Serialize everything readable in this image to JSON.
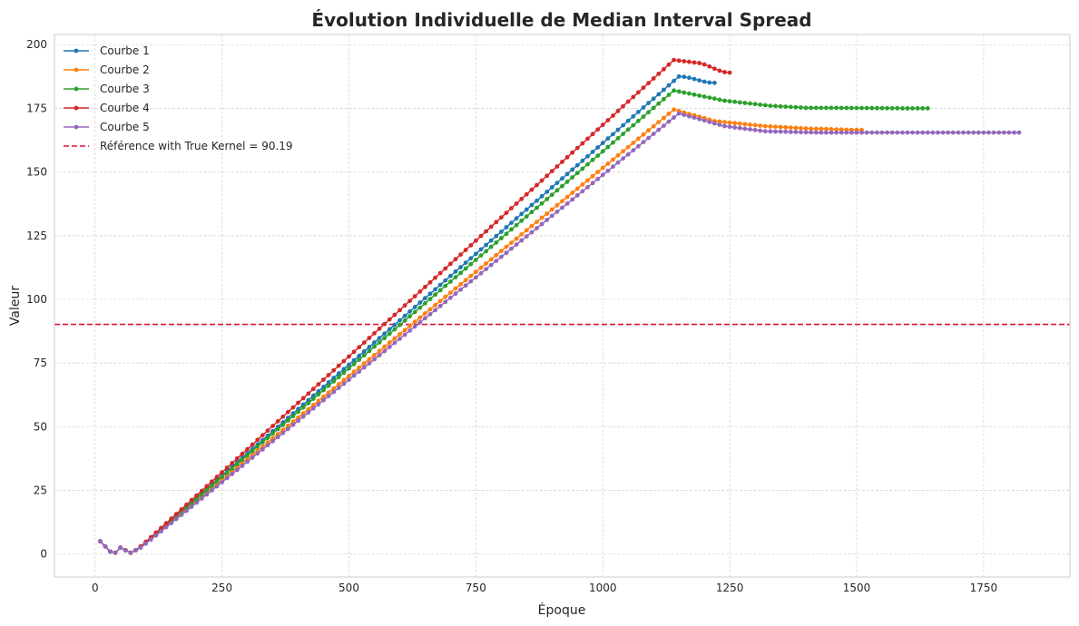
{
  "chart_data": {
    "type": "line",
    "title": "Évolution Individuelle de Median Interval Spread",
    "xlabel": "Époque",
    "ylabel": "Valeur",
    "xlim": [
      -80,
      1920
    ],
    "ylim": [
      -9,
      204
    ],
    "xticks": [
      0,
      250,
      500,
      750,
      1000,
      1250,
      1500,
      1750
    ],
    "yticks": [
      0,
      25,
      50,
      75,
      100,
      125,
      150,
      175,
      200
    ],
    "grid": true,
    "legend_position": "top-left",
    "reference_line": {
      "label": "Référence with True Kernel = 90.19",
      "value": 90.19,
      "color": "#dc143c"
    },
    "x_step": 10,
    "series": [
      {
        "name": "Courbe 1",
        "color": "#1f77b4",
        "x_start": 10,
        "x_end": 1220,
        "segments": [
          [
            10,
            5
          ],
          [
            20,
            3
          ],
          [
            30,
            1
          ],
          [
            40,
            0.5
          ],
          [
            50,
            2.5
          ],
          [
            60,
            1.5
          ],
          [
            70,
            0.5
          ],
          [
            80,
            1.5
          ],
          [
            90,
            3
          ],
          [
            1150,
            187.5
          ],
          [
            1220,
            185
          ]
        ]
      },
      {
        "name": "Courbe 2",
        "color": "#ff7f0e",
        "x_start": 10,
        "x_end": 1510,
        "segments": [
          [
            10,
            5
          ],
          [
            20,
            3
          ],
          [
            30,
            1
          ],
          [
            40,
            0.5
          ],
          [
            50,
            2.5
          ],
          [
            60,
            1.5
          ],
          [
            70,
            0.5
          ],
          [
            80,
            1.5
          ],
          [
            90,
            3
          ],
          [
            1140,
            174.5
          ],
          [
            1220,
            170
          ],
          [
            1320,
            168
          ],
          [
            1410,
            167
          ],
          [
            1510,
            166.5
          ]
        ]
      },
      {
        "name": "Courbe 3",
        "color": "#2ca02c",
        "x_start": 10,
        "x_end": 1640,
        "segments": [
          [
            10,
            5
          ],
          [
            20,
            3
          ],
          [
            30,
            1
          ],
          [
            40,
            0.5
          ],
          [
            50,
            2.5
          ],
          [
            60,
            1.5
          ],
          [
            70,
            0.5
          ],
          [
            80,
            1.5
          ],
          [
            90,
            3
          ],
          [
            1140,
            182
          ],
          [
            1240,
            178
          ],
          [
            1330,
            176
          ],
          [
            1400,
            175.2
          ],
          [
            1640,
            175
          ]
        ]
      },
      {
        "name": "Courbe 4",
        "color": "#d62728",
        "x_start": 10,
        "x_end": 1250,
        "segments": [
          [
            10,
            5
          ],
          [
            20,
            3
          ],
          [
            30,
            1
          ],
          [
            40,
            0.5
          ],
          [
            50,
            2.5
          ],
          [
            60,
            1.5
          ],
          [
            70,
            0.5
          ],
          [
            80,
            1.5
          ],
          [
            90,
            3
          ],
          [
            1140,
            194
          ],
          [
            1180,
            193
          ],
          [
            1250,
            189
          ]
        ]
      },
      {
        "name": "Courbe 5",
        "color": "#9467bd",
        "x_start": 10,
        "x_end": 1820,
        "segments": [
          [
            10,
            5
          ],
          [
            20,
            3
          ],
          [
            30,
            1
          ],
          [
            40,
            0.5
          ],
          [
            50,
            2.5
          ],
          [
            60,
            1.5
          ],
          [
            70,
            0.5
          ],
          [
            80,
            1.5
          ],
          [
            90,
            2.5
          ],
          [
            1150,
            173
          ],
          [
            1240,
            168
          ],
          [
            1320,
            166
          ],
          [
            1420,
            165.5
          ],
          [
            1820,
            165.5
          ]
        ]
      }
    ]
  }
}
